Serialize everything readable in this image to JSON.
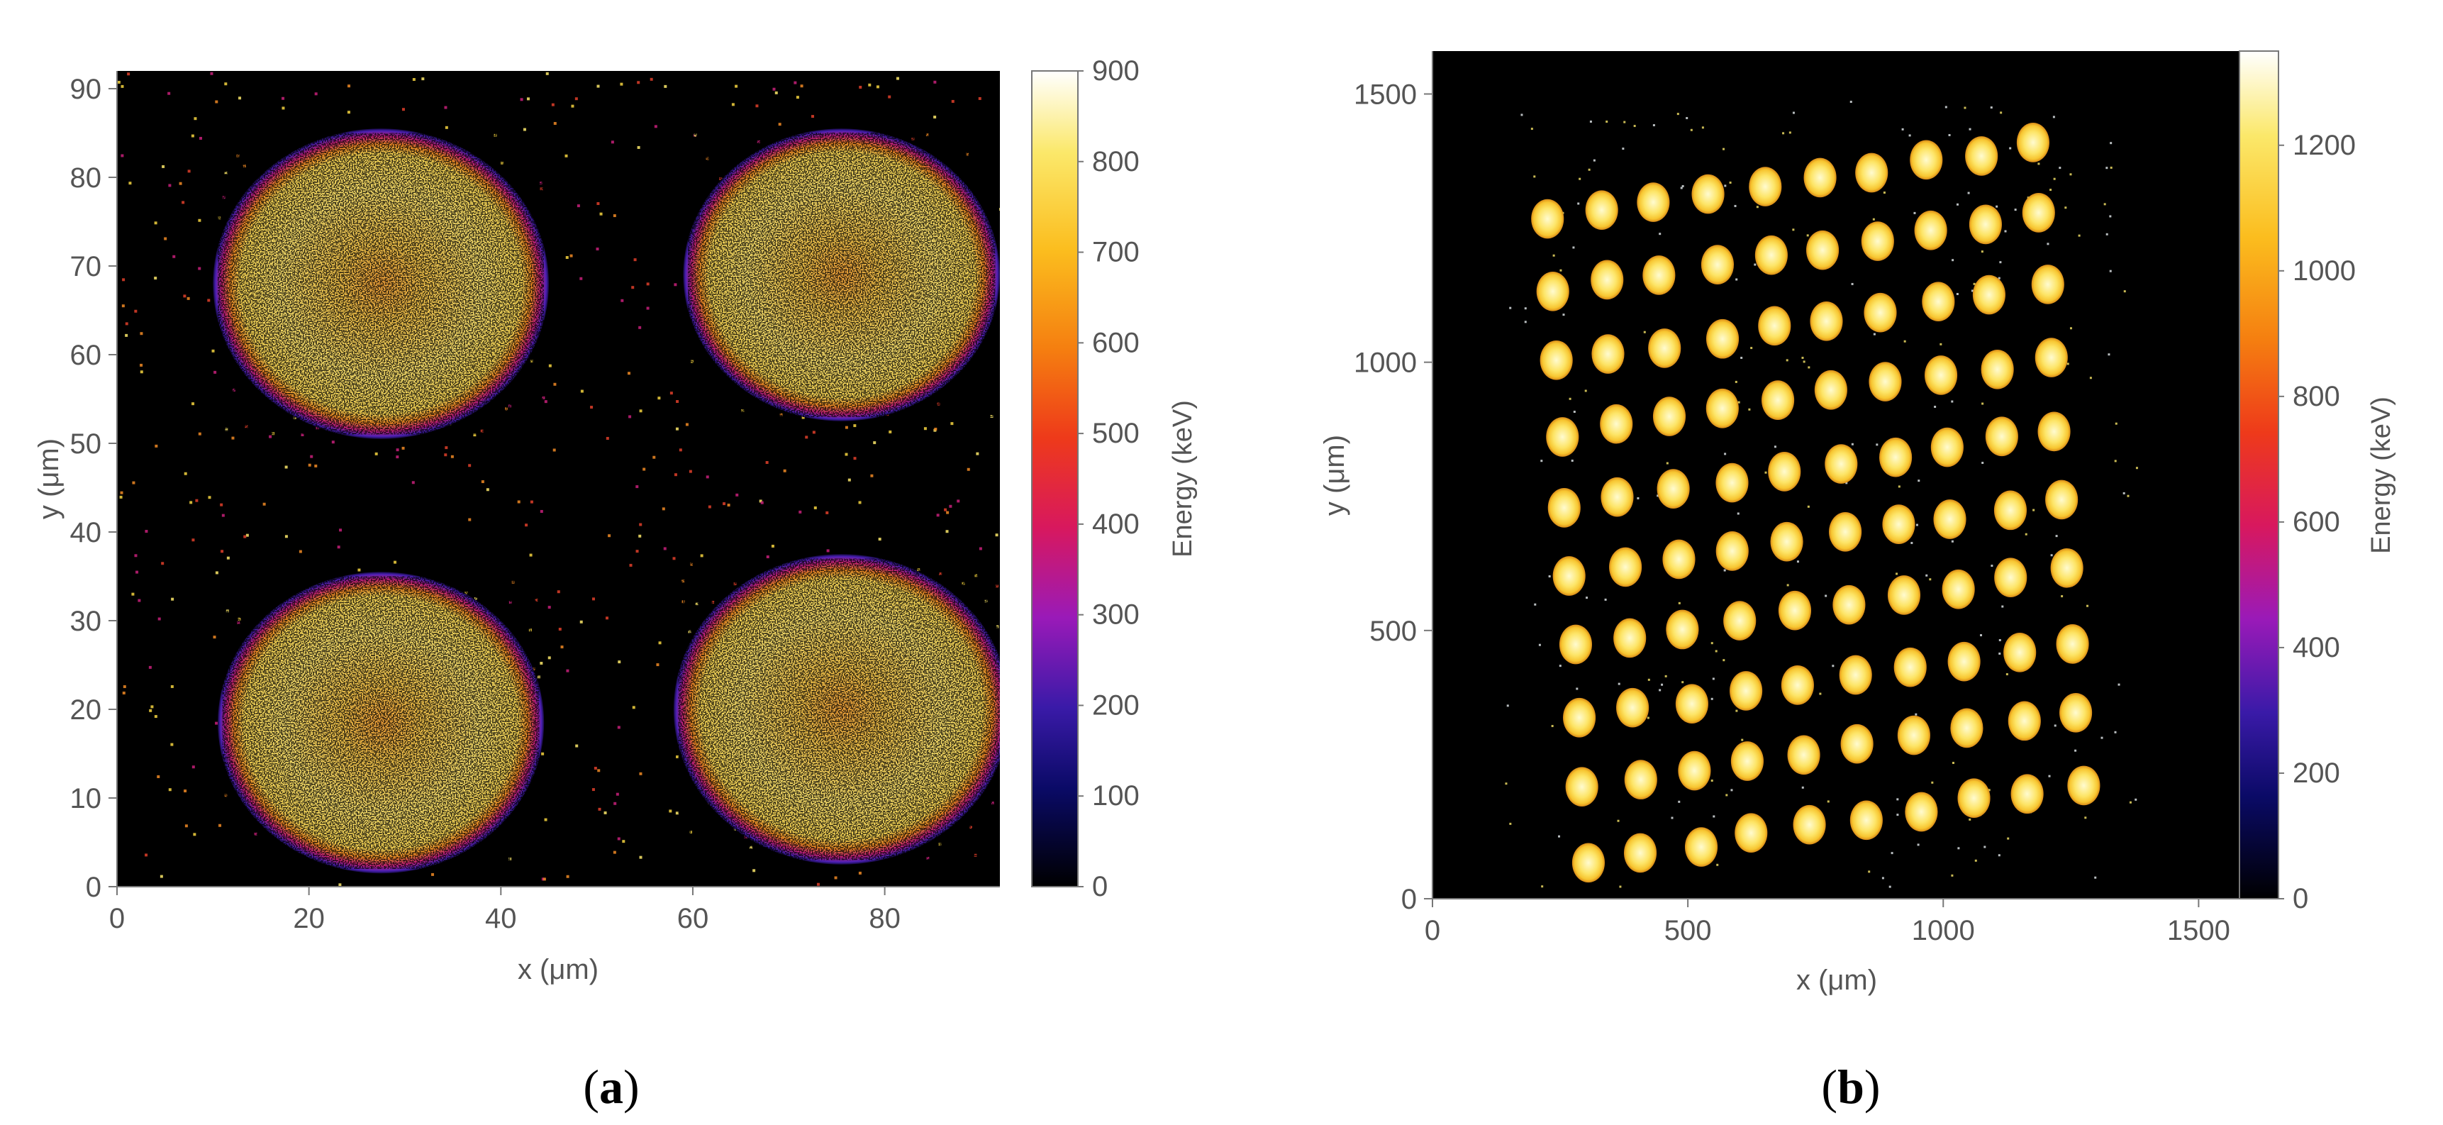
{
  "chart_data": [
    {
      "type": "heatmap",
      "panel_label": "(a)",
      "panel_label_parts": {
        "open": "(",
        "letter": "a",
        "close": ")"
      },
      "xlabel": "x (μm)",
      "ylabel": "y (μm)",
      "xlim": [
        0,
        92
      ],
      "ylim": [
        0,
        92
      ],
      "xticks": [
        0,
        20,
        40,
        60,
        80
      ],
      "yticks": [
        0,
        10,
        20,
        30,
        40,
        50,
        60,
        70,
        80,
        90
      ],
      "colorbar": {
        "label": "Energy (keV)",
        "min": 0,
        "max": 900,
        "ticks": [
          0,
          100,
          200,
          300,
          400,
          500,
          600,
          700,
          800,
          900
        ]
      },
      "spots": [
        {
          "cx": 27.5,
          "cy": 68,
          "r": 17.5
        },
        {
          "cx": 75.5,
          "cy": 69,
          "r": 16.5
        },
        {
          "cx": 27.5,
          "cy": 18.5,
          "r": 17
        },
        {
          "cx": 75.5,
          "cy": 20,
          "r": 17.5
        }
      ]
    },
    {
      "type": "heatmap",
      "panel_label": "(b)",
      "panel_label_parts": {
        "open": "(",
        "letter": "b",
        "close": ")"
      },
      "xlabel": "x (μm)",
      "ylabel": "y (μm)",
      "xlim": [
        0,
        1580
      ],
      "ylim": [
        0,
        1580
      ],
      "xticks": [
        0,
        500,
        1000,
        1500
      ],
      "yticks": [
        0,
        500,
        1000,
        1500
      ],
      "colorbar": {
        "label": "Energy (keV)",
        "min": 0,
        "max": 1350,
        "ticks": [
          0,
          200,
          400,
          600,
          800,
          1000,
          1200
        ]
      },
      "spot_grid": {
        "rows": 10,
        "cols": 10,
        "spot_radius": 32,
        "corner_bottom_left": [
          305,
          70
        ],
        "corner_bottom_right": [
          1275,
          215
        ],
        "corner_top_left": [
          225,
          1265
        ],
        "corner_top_right": [
          1180,
          1405
        ]
      }
    }
  ]
}
